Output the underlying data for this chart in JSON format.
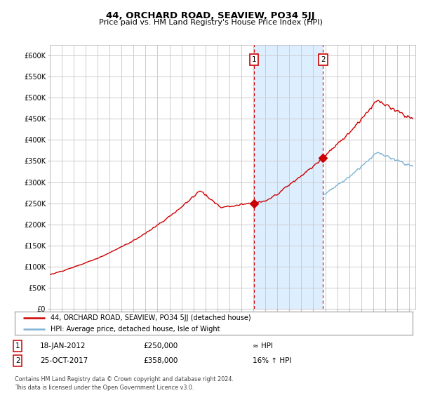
{
  "title": "44, ORCHARD ROAD, SEAVIEW, PO34 5JJ",
  "subtitle": "Price paid vs. HM Land Registry's House Price Index (HPI)",
  "ylabel_ticks": [
    "£0",
    "£50K",
    "£100K",
    "£150K",
    "£200K",
    "£250K",
    "£300K",
    "£350K",
    "£400K",
    "£450K",
    "£500K",
    "£550K",
    "£600K"
  ],
  "ytick_values": [
    0,
    50000,
    100000,
    150000,
    200000,
    250000,
    300000,
    350000,
    400000,
    450000,
    500000,
    550000,
    600000
  ],
  "ylim": [
    0,
    625000
  ],
  "xlim_start": 1995.0,
  "xlim_end": 2025.5,
  "hpi_color": "#7fb3d3",
  "price_color": "#cc0000",
  "sale1_x": 2012.05,
  "sale1_y": 250000,
  "sale2_x": 2017.82,
  "sale2_y": 358000,
  "sale1_label": "1",
  "sale2_label": "2",
  "legend_line1": "44, ORCHARD ROAD, SEAVIEW, PO34 5JJ (detached house)",
  "legend_line2": "HPI: Average price, detached house, Isle of Wight",
  "table_row1": [
    "1",
    "18-JAN-2012",
    "£250,000",
    "≈ HPI"
  ],
  "table_row2": [
    "2",
    "25-OCT-2017",
    "£358,000",
    "16% ↑ HPI"
  ],
  "footer": "Contains HM Land Registry data © Crown copyright and database right 2024.\nThis data is licensed under the Open Government Licence v3.0.",
  "bg_color": "#ffffff",
  "grid_color": "#cccccc",
  "highlight_color": "#ddeeff"
}
